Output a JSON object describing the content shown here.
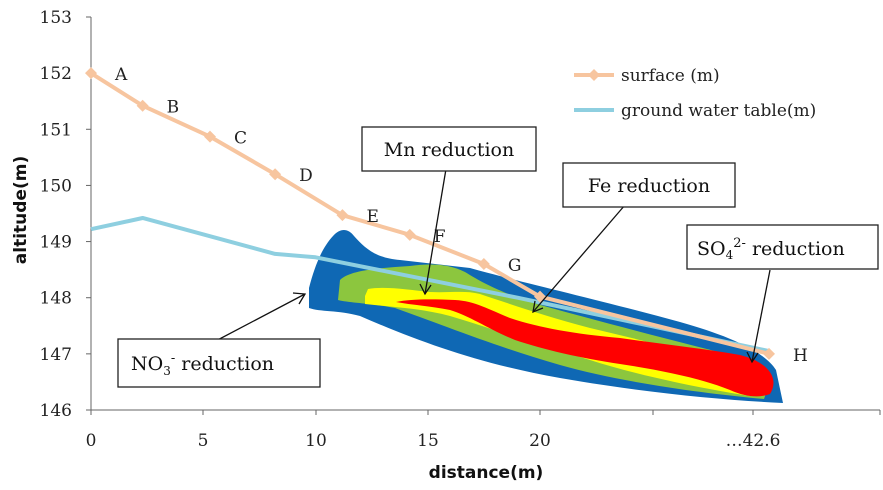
{
  "chart_data": {
    "type": "line",
    "xlabel": "distance(m)",
    "ylabel": "altitude(m)",
    "ylim": [
      146,
      153
    ],
    "x_ticks": [
      "0",
      "5",
      "10",
      "15",
      "20",
      "…42.6"
    ],
    "y_ticks": [
      "146",
      "147",
      "148",
      "149",
      "150",
      "151",
      "152",
      "153"
    ],
    "grid": false,
    "legend_position": "top-right",
    "series": [
      {
        "name": "surface (m)",
        "color": "#f7c59f",
        "marker": "diamond",
        "points": [
          {
            "label": "A",
            "x": "0",
            "y": 152.0
          },
          {
            "label": "B",
            "x": "2.3",
            "y": 151.42
          },
          {
            "label": "C",
            "x": "5.3",
            "y": 150.87
          },
          {
            "label": "D",
            "x": "8.2",
            "y": 150.2
          },
          {
            "label": "E",
            "x": "11.2",
            "y": 149.47
          },
          {
            "label": "F",
            "x": "14.2",
            "y": 149.12
          },
          {
            "label": "G",
            "x": "17.5",
            "y": 148.6
          },
          {
            "label": "",
            "x": "20",
            "y": 148.02
          },
          {
            "label": "H",
            "x": "42.6",
            "y": 147.0
          }
        ]
      },
      {
        "name": "ground water table(m)",
        "color": "#8ecfe0",
        "marker": "none",
        "points": [
          {
            "x": "0",
            "y": 149.22
          },
          {
            "x": "2.3",
            "y": 149.42
          },
          {
            "x": "8.2",
            "y": 148.78
          },
          {
            "x": "10",
            "y": 148.72
          },
          {
            "x": "19",
            "y": 148.0
          },
          {
            "x": "42.6",
            "y": 147.05
          }
        ]
      }
    ],
    "zones": [
      {
        "name": "NO₃⁻ reduction",
        "color": "#0f68b4"
      },
      {
        "name": "Mn reduction",
        "color": "#8cc63e"
      },
      {
        "name": "Fe reduction",
        "color": "#ffff00"
      },
      {
        "name": "SO₄²⁻ reduction",
        "color": "#ff0000"
      }
    ],
    "annotations": {
      "no3": {
        "prefix": "NO",
        "sub": "3",
        "sup": "-",
        "suffix": " reduction"
      },
      "mn": {
        "text": "Mn reduction"
      },
      "fe": {
        "text": "Fe reduction"
      },
      "so4": {
        "prefix": "SO",
        "sub": "4",
        "sup": "2-",
        "suffix": " reduction"
      }
    }
  }
}
